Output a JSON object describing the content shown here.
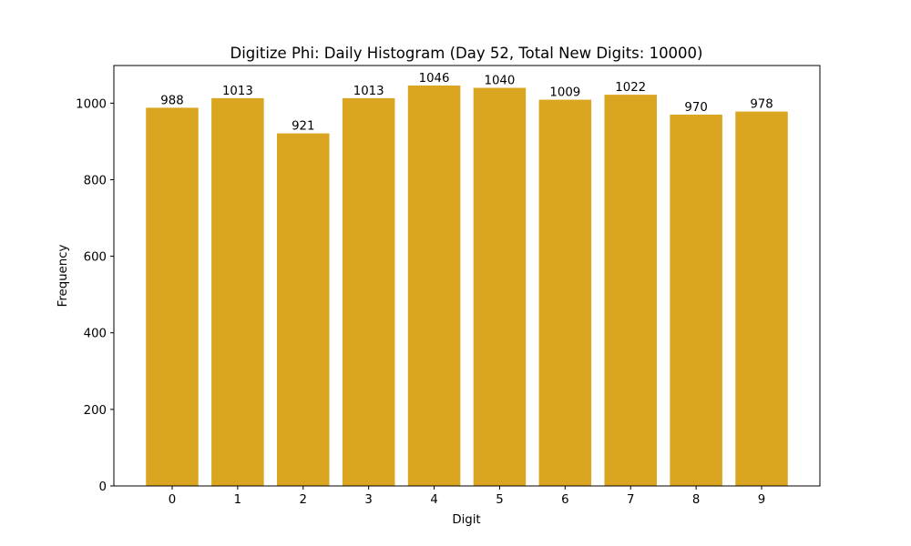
{
  "chart_data": {
    "type": "bar",
    "title": "Digitize Phi: Daily Histogram (Day 52, Total New Digits: 10000)",
    "xlabel": "Digit",
    "ylabel": "Frequency",
    "categories": [
      "0",
      "1",
      "2",
      "3",
      "4",
      "5",
      "6",
      "7",
      "8",
      "9"
    ],
    "values": [
      988,
      1013,
      921,
      1013,
      1046,
      1040,
      1009,
      1022,
      970,
      978
    ],
    "data_labels": [
      "988",
      "1013",
      "921",
      "1013",
      "1046",
      "1040",
      "1009",
      "1022",
      "970",
      "978"
    ],
    "ylim": [
      0,
      1098.3
    ],
    "xlim": [
      -0.89,
      9.89
    ],
    "yticks": [
      0,
      200,
      400,
      600,
      800,
      1000
    ],
    "ytick_labels": [
      "0",
      "200",
      "400",
      "600",
      "800",
      "1000"
    ],
    "bar_width": 0.8,
    "bar_color": "#DAA520",
    "grid": false,
    "legend": null
  }
}
